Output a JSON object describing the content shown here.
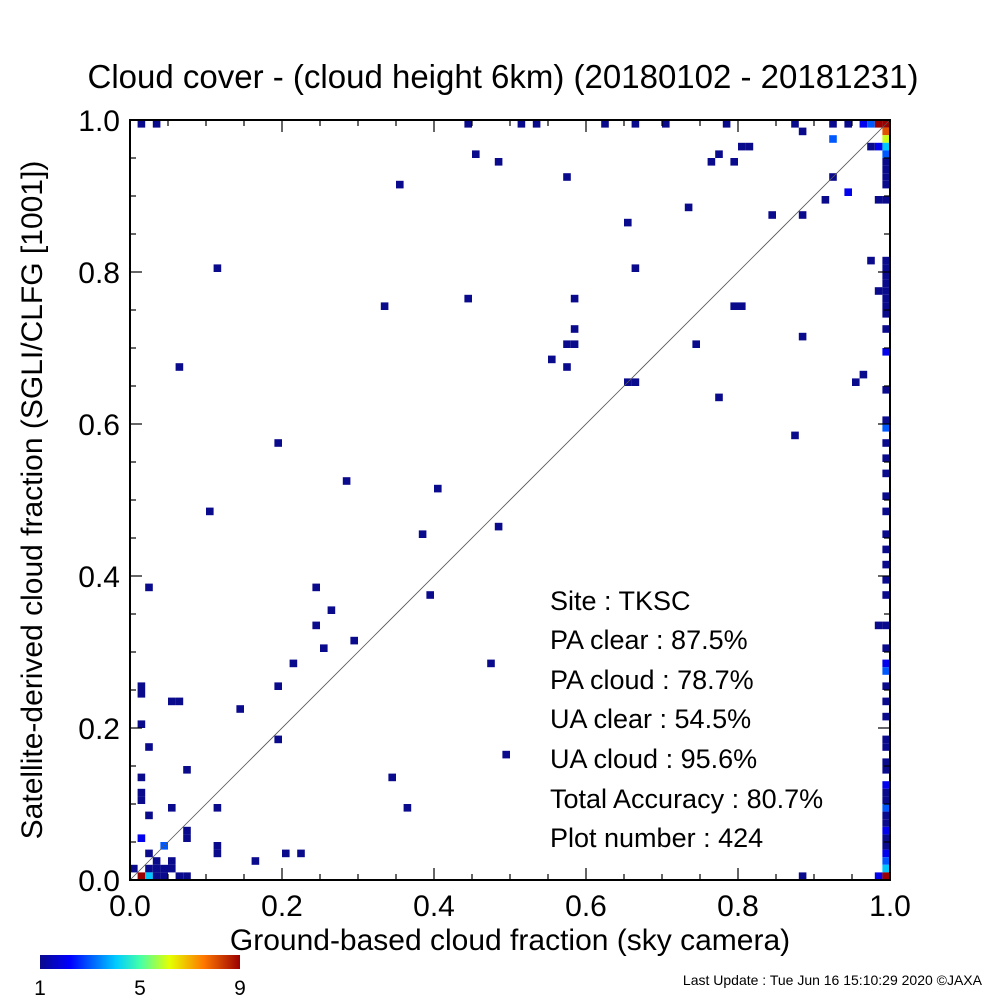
{
  "chart_data": {
    "type": "heatmap",
    "title": "Cloud cover - (cloud height 6km)  (20180102 - 20181231)",
    "xlabel": "Ground-based cloud fraction (sky camera)",
    "ylabel": "Satellite-derived cloud fraction (SGLI/CLFG [1001])",
    "xlim": [
      0.0,
      1.0
    ],
    "ylim": [
      0.0,
      1.0
    ],
    "xticks": [
      "0.0",
      "0.2",
      "0.4",
      "0.6",
      "0.8",
      "1.0"
    ],
    "yticks": [
      "0.0",
      "0.2",
      "0.4",
      "0.6",
      "0.8",
      "1.0"
    ],
    "grid": false,
    "reference_line": "y = x",
    "bin_size": 0.01,
    "colorbar": {
      "min": 1,
      "max": 9,
      "labels": [
        "1",
        "5",
        "9"
      ],
      "position": "bottom-left"
    },
    "cells": [
      [
        0.01,
        0.99,
        1
      ],
      [
        0.03,
        0.99,
        1
      ],
      [
        0.44,
        0.99,
        1
      ],
      [
        0.51,
        0.99,
        1
      ],
      [
        0.53,
        0.99,
        1
      ],
      [
        0.62,
        0.99,
        1
      ],
      [
        0.66,
        0.99,
        1
      ],
      [
        0.7,
        0.99,
        1
      ],
      [
        0.78,
        0.99,
        1
      ],
      [
        0.87,
        0.99,
        1
      ],
      [
        0.92,
        0.99,
        1
      ],
      [
        0.94,
        0.99,
        1
      ],
      [
        0.96,
        0.99,
        2
      ],
      [
        0.97,
        0.99,
        3
      ],
      [
        0.98,
        0.99,
        9
      ],
      [
        0.99,
        0.99,
        9
      ],
      [
        0.88,
        0.98,
        1
      ],
      [
        0.99,
        0.98,
        8
      ],
      [
        0.92,
        0.97,
        3
      ],
      [
        0.99,
        0.97,
        6
      ],
      [
        0.99,
        0.96,
        4
      ],
      [
        0.98,
        0.96,
        2
      ],
      [
        0.97,
        0.96,
        1
      ],
      [
        0.99,
        0.95,
        3
      ],
      [
        0.99,
        0.94,
        1
      ],
      [
        0.99,
        0.93,
        1
      ],
      [
        0.99,
        0.92,
        1
      ],
      [
        0.99,
        0.91,
        1
      ],
      [
        0.99,
        0.89,
        1
      ],
      [
        0.98,
        0.89,
        1
      ],
      [
        0.45,
        0.95,
        1
      ],
      [
        0.77,
        0.95,
        1
      ],
      [
        0.8,
        0.96,
        1
      ],
      [
        0.81,
        0.96,
        1
      ],
      [
        0.48,
        0.94,
        1
      ],
      [
        0.76,
        0.94,
        1
      ],
      [
        0.79,
        0.94,
        1
      ],
      [
        0.57,
        0.92,
        1
      ],
      [
        0.92,
        0.92,
        1
      ],
      [
        0.35,
        0.91,
        1
      ],
      [
        0.94,
        0.9,
        2
      ],
      [
        0.91,
        0.89,
        1
      ],
      [
        0.73,
        0.88,
        1
      ],
      [
        0.84,
        0.87,
        1
      ],
      [
        0.88,
        0.87,
        1
      ],
      [
        0.65,
        0.86,
        1
      ],
      [
        0.97,
        0.81,
        1
      ],
      [
        0.99,
        0.81,
        1
      ],
      [
        0.11,
        0.8,
        1
      ],
      [
        0.66,
        0.8,
        1
      ],
      [
        0.99,
        0.8,
        1
      ],
      [
        0.99,
        0.79,
        1
      ],
      [
        0.99,
        0.78,
        1
      ],
      [
        0.99,
        0.77,
        1
      ],
      [
        0.98,
        0.77,
        1
      ],
      [
        0.99,
        0.76,
        1
      ],
      [
        0.44,
        0.76,
        1
      ],
      [
        0.58,
        0.76,
        1
      ],
      [
        0.33,
        0.75,
        1
      ],
      [
        0.79,
        0.75,
        1
      ],
      [
        0.8,
        0.75,
        1
      ],
      [
        0.99,
        0.75,
        1
      ],
      [
        0.99,
        0.74,
        1
      ],
      [
        0.99,
        0.72,
        1
      ],
      [
        0.58,
        0.72,
        1
      ],
      [
        0.88,
        0.71,
        1
      ],
      [
        0.57,
        0.7,
        1
      ],
      [
        0.58,
        0.7,
        1
      ],
      [
        0.74,
        0.7,
        1
      ],
      [
        0.99,
        0.69,
        2
      ],
      [
        0.55,
        0.68,
        1
      ],
      [
        0.06,
        0.67,
        1
      ],
      [
        0.57,
        0.67,
        1
      ],
      [
        0.96,
        0.66,
        1
      ],
      [
        0.95,
        0.65,
        1
      ],
      [
        0.65,
        0.65,
        1
      ],
      [
        0.66,
        0.65,
        1
      ],
      [
        0.99,
        0.64,
        1
      ],
      [
        0.77,
        0.63,
        1
      ],
      [
        0.99,
        0.6,
        1
      ],
      [
        0.99,
        0.59,
        3
      ],
      [
        0.87,
        0.58,
        1
      ],
      [
        0.19,
        0.57,
        1
      ],
      [
        0.99,
        0.57,
        1
      ],
      [
        0.99,
        0.55,
        1
      ],
      [
        0.99,
        0.53,
        1
      ],
      [
        0.28,
        0.52,
        1
      ],
      [
        0.4,
        0.51,
        1
      ],
      [
        0.99,
        0.5,
        1
      ],
      [
        0.1,
        0.48,
        1
      ],
      [
        0.99,
        0.48,
        1
      ],
      [
        0.48,
        0.46,
        1
      ],
      [
        0.38,
        0.45,
        1
      ],
      [
        0.99,
        0.45,
        1
      ],
      [
        0.99,
        0.43,
        1
      ],
      [
        0.99,
        0.41,
        1
      ],
      [
        0.99,
        0.39,
        1
      ],
      [
        0.02,
        0.38,
        1
      ],
      [
        0.24,
        0.38,
        1
      ],
      [
        0.39,
        0.37,
        1
      ],
      [
        0.99,
        0.37,
        1
      ],
      [
        0.26,
        0.35,
        1
      ],
      [
        0.98,
        0.33,
        1
      ],
      [
        0.99,
        0.33,
        1
      ],
      [
        0.24,
        0.33,
        1
      ],
      [
        0.29,
        0.31,
        1
      ],
      [
        0.25,
        0.3,
        1
      ],
      [
        0.99,
        0.3,
        1
      ],
      [
        0.21,
        0.28,
        1
      ],
      [
        0.47,
        0.28,
        1
      ],
      [
        0.99,
        0.28,
        2
      ],
      [
        0.99,
        0.27,
        3
      ],
      [
        0.01,
        0.25,
        1
      ],
      [
        0.19,
        0.25,
        1
      ],
      [
        0.99,
        0.25,
        1
      ],
      [
        0.01,
        0.24,
        1
      ],
      [
        0.05,
        0.23,
        1
      ],
      [
        0.06,
        0.23,
        1
      ],
      [
        0.99,
        0.23,
        1
      ],
      [
        0.14,
        0.22,
        1
      ],
      [
        0.99,
        0.21,
        1
      ],
      [
        0.01,
        0.2,
        1
      ],
      [
        0.19,
        0.18,
        1
      ],
      [
        0.99,
        0.18,
        1
      ],
      [
        0.02,
        0.17,
        1
      ],
      [
        0.99,
        0.17,
        1
      ],
      [
        0.49,
        0.16,
        1
      ],
      [
        0.99,
        0.15,
        1
      ],
      [
        0.07,
        0.14,
        1
      ],
      [
        0.99,
        0.14,
        1
      ],
      [
        0.01,
        0.13,
        1
      ],
      [
        0.34,
        0.13,
        1
      ],
      [
        0.99,
        0.12,
        2
      ],
      [
        0.01,
        0.11,
        1
      ],
      [
        0.99,
        0.11,
        1
      ],
      [
        0.01,
        0.1,
        1
      ],
      [
        0.99,
        0.1,
        1
      ],
      [
        0.05,
        0.09,
        1
      ],
      [
        0.11,
        0.09,
        1
      ],
      [
        0.36,
        0.09,
        1
      ],
      [
        0.99,
        0.09,
        3
      ],
      [
        0.02,
        0.08,
        1
      ],
      [
        0.99,
        0.08,
        1
      ],
      [
        0.99,
        0.07,
        1
      ],
      [
        0.07,
        0.06,
        1
      ],
      [
        0.99,
        0.06,
        2
      ],
      [
        0.01,
        0.05,
        2
      ],
      [
        0.07,
        0.05,
        1
      ],
      [
        0.99,
        0.05,
        1
      ],
      [
        0.04,
        0.04,
        3
      ],
      [
        0.11,
        0.04,
        1
      ],
      [
        0.99,
        0.04,
        1
      ],
      [
        0.02,
        0.03,
        1
      ],
      [
        0.11,
        0.03,
        1
      ],
      [
        0.2,
        0.03,
        1
      ],
      [
        0.22,
        0.03,
        1
      ],
      [
        0.99,
        0.03,
        2
      ],
      [
        0.03,
        0.02,
        1
      ],
      [
        0.05,
        0.02,
        1
      ],
      [
        0.16,
        0.02,
        1
      ],
      [
        0.99,
        0.02,
        3
      ],
      [
        0.0,
        0.01,
        1
      ],
      [
        0.02,
        0.01,
        1
      ],
      [
        0.03,
        0.01,
        1
      ],
      [
        0.04,
        0.01,
        1
      ],
      [
        0.05,
        0.01,
        1
      ],
      [
        0.99,
        0.01,
        4
      ],
      [
        0.01,
        0.0,
        9
      ],
      [
        0.02,
        0.0,
        4
      ],
      [
        0.03,
        0.0,
        1
      ],
      [
        0.04,
        0.0,
        1
      ],
      [
        0.06,
        0.0,
        1
      ],
      [
        0.07,
        0.0,
        1
      ],
      [
        0.88,
        0.0,
        1
      ],
      [
        0.98,
        0.0,
        2
      ],
      [
        0.99,
        0.0,
        9
      ]
    ]
  },
  "stats": {
    "site": "Site : TKSC",
    "pa_clear": "PA clear :  87.5%",
    "pa_cloud": "PA cloud :  78.7%",
    "ua_clear": "UA clear :  54.5%",
    "ua_cloud": "UA cloud :  95.6%",
    "total_accuracy": "Total Accuracy :  80.7%",
    "plot_number": "Plot number :       424"
  },
  "footer": {
    "last_update": "Last Update : Tue Jun 16 15:10:29 2020  ©JAXA"
  }
}
